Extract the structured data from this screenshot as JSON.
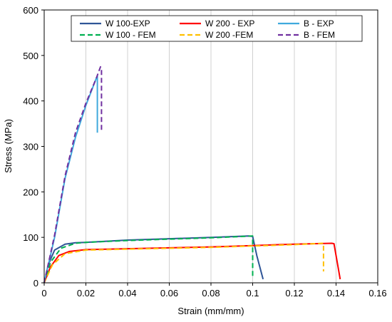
{
  "chart_data": {
    "type": "line",
    "title": "",
    "xlabel": "Strain (mm/mm)",
    "ylabel": "Stress (MPa)",
    "xlim": [
      0,
      0.16
    ],
    "ylim": [
      0,
      600
    ],
    "x_ticks": [
      "0",
      "0.02",
      "0.04",
      "0.06",
      "0.08",
      "0.1",
      "0.12",
      "0.14",
      "0.16"
    ],
    "y_ticks": [
      "0",
      "100",
      "200",
      "300",
      "400",
      "500",
      "600"
    ],
    "grid": "vertical",
    "legend_position": "top",
    "series": [
      {
        "name": "W 100-EXP",
        "color": "#2f5597",
        "dash": "solid",
        "x": [
          0,
          0.002,
          0.005,
          0.01,
          0.015,
          0.02,
          0.04,
          0.06,
          0.08,
          0.098,
          0.1,
          0.102,
          0.105
        ],
        "y": [
          0,
          40,
          72,
          85,
          88,
          89,
          94,
          97,
          100,
          103,
          102,
          60,
          8
        ]
      },
      {
        "name": "W 200 - EXP",
        "color": "#ff0000",
        "dash": "solid",
        "x": [
          0,
          0.003,
          0.007,
          0.012,
          0.02,
          0.05,
          0.08,
          0.1,
          0.12,
          0.138,
          0.139,
          0.142
        ],
        "y": [
          0,
          35,
          60,
          69,
          73,
          76,
          79,
          82,
          85,
          87,
          86,
          8
        ]
      },
      {
        "name": "B - EXP",
        "color": "#3fa9dd",
        "dash": "solid",
        "x": [
          0,
          0.005,
          0.01,
          0.015,
          0.02,
          0.025,
          0.0255,
          0.0255
        ],
        "y": [
          0,
          100,
          230,
          320,
          390,
          450,
          455,
          330
        ]
      },
      {
        "name": "W 100 - FEM",
        "color": "#00b050",
        "dash": "dashed",
        "x": [
          0,
          0.003,
          0.008,
          0.015,
          0.02,
          0.04,
          0.06,
          0.08,
          0.1,
          0.1,
          0.1
        ],
        "y": [
          0,
          45,
          76,
          87,
          89,
          93,
          96,
          99,
          103,
          60,
          15
        ]
      },
      {
        "name": "W 200 -FEM",
        "color": "#ffc000",
        "dash": "dashed",
        "x": [
          0,
          0.004,
          0.01,
          0.02,
          0.05,
          0.08,
          0.1,
          0.12,
          0.134,
          0.134
        ],
        "y": [
          0,
          40,
          64,
          72,
          75,
          78,
          81,
          84,
          87,
          25
        ]
      },
      {
        "name": "B - FEM",
        "color": "#7030a0",
        "dash": "dashed",
        "x": [
          0,
          0.005,
          0.01,
          0.015,
          0.02,
          0.025,
          0.027,
          0.0275,
          0.0275
        ],
        "y": [
          0,
          105,
          235,
          330,
          395,
          450,
          475,
          470,
          330
        ]
      }
    ]
  }
}
